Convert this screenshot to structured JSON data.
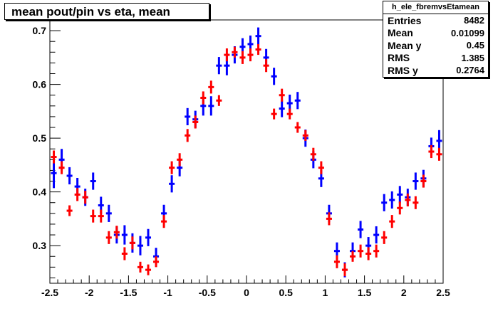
{
  "title": "mean pout/pin vs eta, mean",
  "stats": {
    "name": "h_ele_fbremvsEtamean",
    "rows": [
      {
        "label": "Entries",
        "value": "8482"
      },
      {
        "label": "Mean",
        "value": "0.01099"
      },
      {
        "label": "Mean y",
        "value": "0.45"
      },
      {
        "label": "RMS",
        "value": "1.385"
      },
      {
        "label": "RMS y",
        "value": "0.2764"
      }
    ]
  },
  "chart_data": {
    "type": "scatter",
    "xlim": [
      -2.5,
      2.5
    ],
    "ylim": [
      0.23,
      0.72
    ],
    "x_ticks": [
      {
        "v": -2.5,
        "label": "-2.5"
      },
      {
        "v": -2,
        "label": "-2"
      },
      {
        "v": -1.5,
        "label": "-1.5"
      },
      {
        "v": -1,
        "label": "-1"
      },
      {
        "v": -0.5,
        "label": "-0.5"
      },
      {
        "v": 0,
        "label": "0"
      },
      {
        "v": 0.5,
        "label": "0.5"
      },
      {
        "v": 1,
        "label": "1"
      },
      {
        "v": 1.5,
        "label": "1.5"
      },
      {
        "v": 2,
        "label": "2"
      },
      {
        "v": 2.5,
        "label": "2.5"
      }
    ],
    "y_ticks": [
      {
        "v": 0.3,
        "label": "0.3"
      },
      {
        "v": 0.4,
        "label": "0.4"
      },
      {
        "v": 0.5,
        "label": "0.5"
      },
      {
        "v": 0.6,
        "label": "0.6"
      },
      {
        "v": 0.7,
        "label": "0.7"
      }
    ],
    "bin_half_width": 0.05,
    "series": [
      {
        "color": "#0000ff",
        "x": [
          -2.45,
          -2.35,
          -2.25,
          -2.15,
          -2.05,
          -1.95,
          -1.85,
          -1.75,
          -1.65,
          -1.55,
          -1.45,
          -1.35,
          -1.25,
          -1.15,
          -1.05,
          -0.95,
          -0.85,
          -0.75,
          -0.65,
          -0.55,
          -0.45,
          -0.35,
          -0.25,
          -0.15,
          -0.05,
          0.05,
          0.15,
          0.25,
          0.35,
          0.45,
          0.55,
          0.65,
          0.75,
          0.85,
          0.95,
          1.05,
          1.15,
          1.25,
          1.35,
          1.45,
          1.55,
          1.65,
          1.75,
          1.85,
          1.95,
          2.05,
          2.15,
          2.25,
          2.35,
          2.45
        ],
        "y": [
          0.435,
          0.46,
          0.43,
          0.41,
          0.39,
          0.42,
          0.375,
          0.36,
          0.32,
          0.32,
          0.305,
          0.3,
          0.315,
          0.28,
          0.36,
          0.415,
          0.445,
          0.54,
          0.535,
          0.56,
          0.56,
          0.635,
          0.635,
          0.655,
          0.67,
          0.675,
          0.69,
          0.65,
          0.615,
          0.555,
          0.565,
          0.57,
          0.5,
          0.46,
          0.425,
          0.36,
          0.29,
          0.255,
          0.29,
          0.33,
          0.3,
          0.32,
          0.38,
          0.385,
          0.395,
          0.39,
          0.42,
          0.425,
          0.485,
          0.495
        ],
        "err": [
          0.028,
          0.02,
          0.016,
          0.016,
          0.016,
          0.016,
          0.016,
          0.016,
          0.016,
          0.018,
          0.018,
          0.018,
          0.016,
          0.016,
          0.016,
          0.016,
          0.016,
          0.016,
          0.016,
          0.018,
          0.018,
          0.016,
          0.018,
          0.016,
          0.016,
          0.016,
          0.016,
          0.016,
          0.016,
          0.016,
          0.016,
          0.016,
          0.016,
          0.016,
          0.016,
          0.016,
          0.016,
          0.014,
          0.016,
          0.016,
          0.016,
          0.016,
          0.016,
          0.016,
          0.016,
          0.016,
          0.016,
          0.016,
          0.016,
          0.02
        ]
      },
      {
        "color": "#ff0000",
        "x": [
          -2.45,
          -2.35,
          -2.25,
          -2.15,
          -2.05,
          -1.95,
          -1.85,
          -1.75,
          -1.65,
          -1.55,
          -1.45,
          -1.35,
          -1.25,
          -1.15,
          -1.05,
          -0.95,
          -0.85,
          -0.75,
          -0.65,
          -0.55,
          -0.45,
          -0.35,
          -0.25,
          -0.15,
          -0.05,
          0.05,
          0.15,
          0.25,
          0.35,
          0.45,
          0.55,
          0.65,
          0.75,
          0.85,
          0.95,
          1.05,
          1.15,
          1.25,
          1.35,
          1.45,
          1.55,
          1.65,
          1.75,
          1.85,
          1.95,
          2.05,
          2.15,
          2.25,
          2.35,
          2.45
        ],
        "y": [
          0.465,
          0.445,
          0.365,
          0.395,
          0.39,
          0.355,
          0.355,
          0.315,
          0.325,
          0.285,
          0.305,
          0.26,
          0.255,
          0.27,
          0.345,
          0.445,
          0.46,
          0.505,
          0.53,
          0.575,
          0.595,
          0.57,
          0.655,
          0.66,
          0.65,
          0.655,
          0.665,
          0.635,
          0.545,
          0.58,
          0.545,
          0.52,
          0.505,
          0.47,
          0.445,
          0.35,
          0.27,
          0.255,
          0.28,
          0.29,
          0.285,
          0.29,
          0.315,
          0.345,
          0.37,
          0.385,
          0.38,
          0.42,
          0.475,
          0.47
        ],
        "err": [
          0.012,
          0.012,
          0.01,
          0.012,
          0.012,
          0.012,
          0.012,
          0.012,
          0.012,
          0.012,
          0.012,
          0.01,
          0.01,
          0.01,
          0.012,
          0.012,
          0.012,
          0.012,
          0.012,
          0.012,
          0.012,
          0.01,
          0.012,
          0.01,
          0.012,
          0.012,
          0.01,
          0.012,
          0.01,
          0.012,
          0.01,
          0.01,
          0.01,
          0.012,
          0.012,
          0.012,
          0.012,
          0.012,
          0.01,
          0.012,
          0.012,
          0.012,
          0.012,
          0.012,
          0.012,
          0.012,
          0.012,
          0.012,
          0.012,
          0.012
        ]
      }
    ]
  }
}
